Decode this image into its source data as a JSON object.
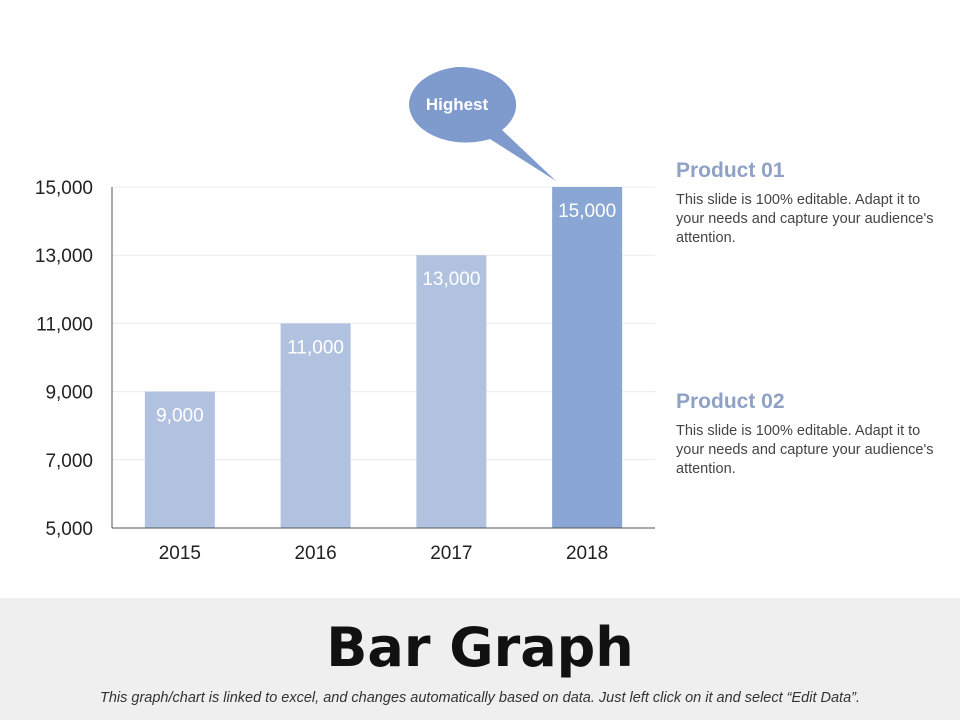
{
  "chart_data": {
    "type": "bar",
    "categories": [
      "2015",
      "2016",
      "2017",
      "2018"
    ],
    "values": [
      9000,
      11000,
      13000,
      15000
    ],
    "value_labels": [
      "9,000",
      "11,000",
      "13,000",
      "15,000"
    ],
    "ylim": [
      5000,
      15000
    ],
    "y_ticks": [
      "5,000",
      "7,000",
      "9,000",
      "11,000",
      "13,000",
      "15,000"
    ],
    "y_tick_values": [
      5000,
      7000,
      9000,
      11000,
      13000,
      15000
    ],
    "grid": true,
    "bar_color": "#b1c2e0",
    "highlight_color": "#8aa6d4",
    "highlight_index": 3,
    "callout": {
      "text": "Highest",
      "color": "#7f9bcd"
    }
  },
  "products": [
    {
      "title": "Product 01",
      "text": "This slide is 100% editable. Adapt it to your needs and capture your audience's attention."
    },
    {
      "title": "Product 02",
      "text": "This slide is 100% editable. Adapt it to your needs and capture your audience's attention."
    }
  ],
  "footer": {
    "title": "Bar Graph",
    "note": "This graph/chart is linked to excel, and changes automatically based on data. Just left click on it and select “Edit Data”."
  }
}
